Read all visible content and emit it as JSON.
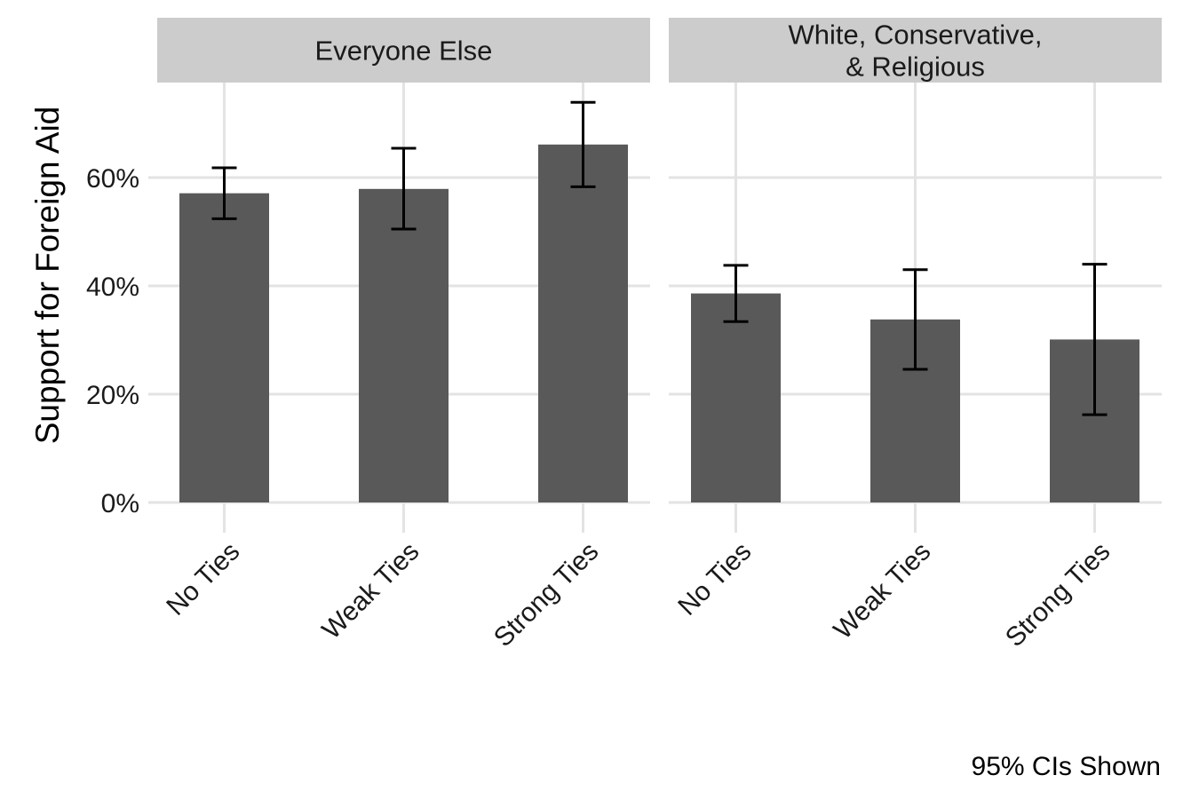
{
  "chart_data": {
    "type": "bar",
    "ylabel": "Support for Foreign Aid",
    "xlabel": "",
    "ylim": [
      0,
      0.78
    ],
    "y_ticks": [
      0,
      0.2,
      0.4,
      0.6
    ],
    "y_tick_labels": [
      "0%",
      "20%",
      "40%",
      "60%"
    ],
    "categories": [
      "No Ties",
      "Weak Ties",
      "Strong Ties"
    ],
    "grid": true,
    "caption": "95% CIs Shown",
    "bar_color": "#595959",
    "errorbar_color": "#000000",
    "panels": [
      {
        "strip_label": [
          "Everyone Else"
        ],
        "values": [
          0.571,
          0.579,
          0.661
        ],
        "ci_low": [
          0.524,
          0.505,
          0.583
        ],
        "ci_high": [
          0.618,
          0.654,
          0.739
        ]
      },
      {
        "strip_label": [
          "White, Conservative,",
          "& Religious"
        ],
        "values": [
          0.386,
          0.338,
          0.301
        ],
        "ci_low": [
          0.334,
          0.246,
          0.162
        ],
        "ci_high": [
          0.438,
          0.43,
          0.44
        ]
      }
    ]
  }
}
